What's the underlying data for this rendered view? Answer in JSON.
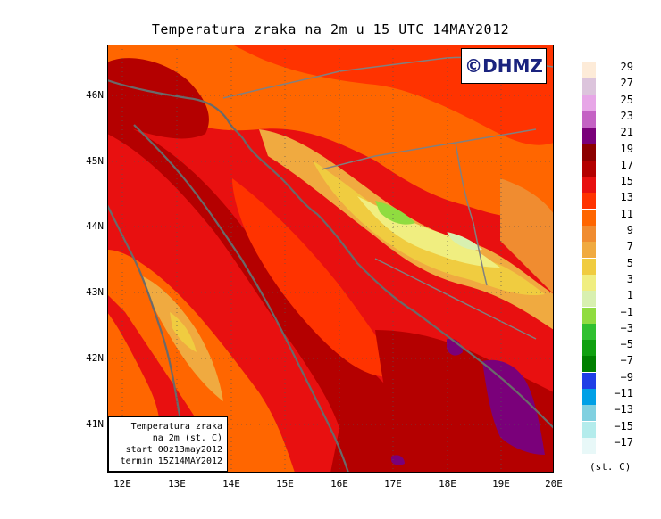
{
  "title": "Temperatura zraka na 2m u 15 UTC 14MAY2012",
  "logo": "©DHMZ",
  "info": {
    "line1": "Temperatura zraka",
    "line2": "na 2m (st. C)",
    "line3": "start 00z13may2012",
    "line4": "termin 15Z14MAY2012"
  },
  "lat_labels": [
    "46N",
    "45N",
    "44N",
    "43N",
    "42N",
    "41N"
  ],
  "lon_labels": [
    "12E",
    "13E",
    "14E",
    "15E",
    "16E",
    "17E",
    "18E",
    "19E",
    "20E"
  ],
  "legend": {
    "labels": [
      "29",
      "27",
      "25",
      "23",
      "21",
      "19",
      "17",
      "15",
      "13",
      "11",
      "9",
      "7",
      "5",
      "3",
      "1",
      "−1",
      "−3",
      "−5",
      "−7",
      "−9",
      "−11",
      "−13",
      "−15",
      "−17"
    ],
    "colors": [
      "#fdebd8",
      "#dcc4dc",
      "#e7a6e7",
      "#c462c4",
      "#7a007a",
      "#8c0000",
      "#b40000",
      "#e81010",
      "#ff3300",
      "#ff6600",
      "#f08c30",
      "#f0aa40",
      "#f0cc40",
      "#f0ee80",
      "#d8f0b0",
      "#90dc40",
      "#30c030",
      "#10a010",
      "#008000",
      "#1f3fe6",
      "#00a0e6",
      "#80d0e0",
      "#b4ecec",
      "#e8f8f8"
    ],
    "units": "(st. C)"
  }
}
